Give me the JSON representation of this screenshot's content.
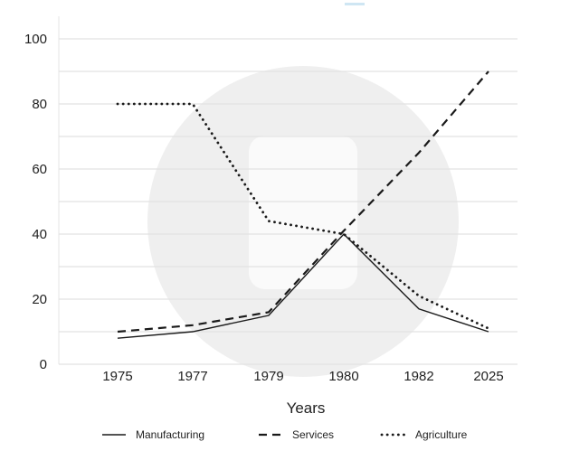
{
  "chart_data": {
    "type": "line",
    "title": "",
    "xlabel": "Years",
    "ylabel": "",
    "categories": [
      "1975",
      "1977",
      "1979",
      "1980",
      "1982",
      "2025"
    ],
    "ylim": [
      0,
      100
    ],
    "yticks": [
      0,
      20,
      40,
      60,
      80,
      100
    ],
    "grid": true,
    "legend_position": "bottom",
    "series": [
      {
        "name": "Manufacturing",
        "style": "solid",
        "values": [
          8,
          10,
          15,
          40,
          17,
          10
        ]
      },
      {
        "name": "Services",
        "style": "dashed",
        "values": [
          10,
          12,
          16,
          41,
          65,
          90
        ]
      },
      {
        "name": "Agriculture",
        "style": "dotted",
        "values": [
          80,
          80,
          44,
          40,
          21,
          11
        ]
      }
    ],
    "colors": {
      "line": "#1a1a1a",
      "grid": "#e2e2e2",
      "watermark": "#ececec"
    }
  }
}
